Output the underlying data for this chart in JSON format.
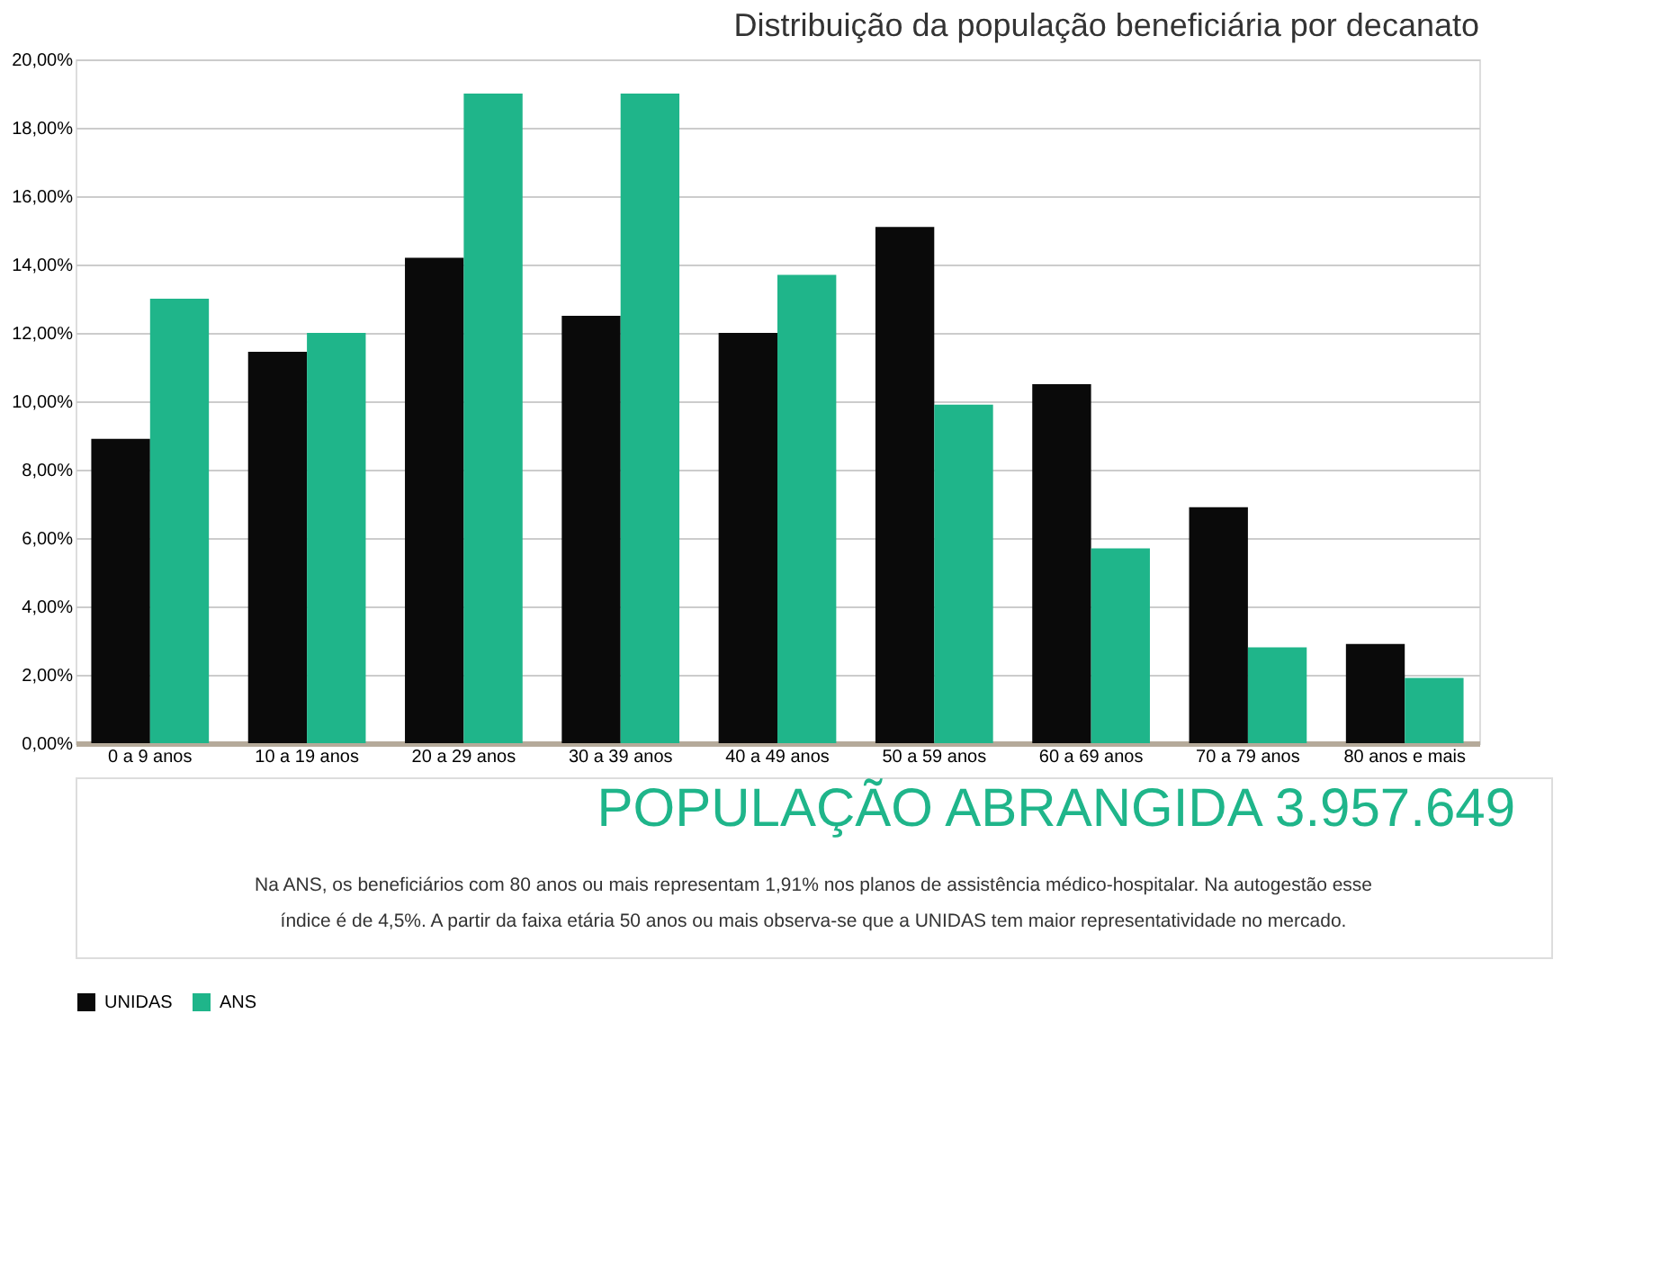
{
  "chart_data": {
    "type": "bar",
    "title": "Distribuição da população beneficiária por decanato",
    "categories": [
      "0 a 9 anos",
      "10 a 19 anos",
      "20 a 29 anos",
      "30 a 39 anos",
      "40 a 49 anos",
      "50 a 59 anos",
      "60 a 69 anos",
      "70 a 79 anos",
      "80 anos e mais"
    ],
    "series": [
      {
        "name": "UNIDAS",
        "color": "#0a0a0a",
        "values": [
          8.9,
          11.45,
          14.2,
          12.5,
          12.0,
          15.1,
          10.5,
          6.9,
          2.9
        ]
      },
      {
        "name": "ANS",
        "color": "#1fb58a",
        "values": [
          13.0,
          12.0,
          19.0,
          19.0,
          13.7,
          9.9,
          5.7,
          2.8,
          1.91
        ]
      }
    ],
    "ylim": [
      0,
      20
    ],
    "yticks": [
      {
        "value": 0,
        "label": "0,00%"
      },
      {
        "value": 2,
        "label": "2,00%"
      },
      {
        "value": 4,
        "label": "4,00%"
      },
      {
        "value": 6,
        "label": "6,00%"
      },
      {
        "value": 8,
        "label": "8,00%"
      },
      {
        "value": 10,
        "label": "10,00%"
      },
      {
        "value": 12,
        "label": "12,00%"
      },
      {
        "value": 14,
        "label": "14,00%"
      },
      {
        "value": 16,
        "label": "16,00%"
      },
      {
        "value": 18,
        "label": "18,00%"
      },
      {
        "value": 20,
        "label": "20,00%"
      }
    ],
    "grid": "y",
    "legend": "bottom",
    "annotations": [
      "POPULAÇÃO ABRANGIDA 3.957.649",
      "Na ANS, os beneficiários com 80 anos ou mais representam 1,91% nos planos de assistência médico-hospitalar. Na autogestão esse",
      "índice é de 4,5%. A partir da faixa etária 50 anos ou mais observa-se que a UNIDAS tem maior representatividade no mercado."
    ]
  }
}
